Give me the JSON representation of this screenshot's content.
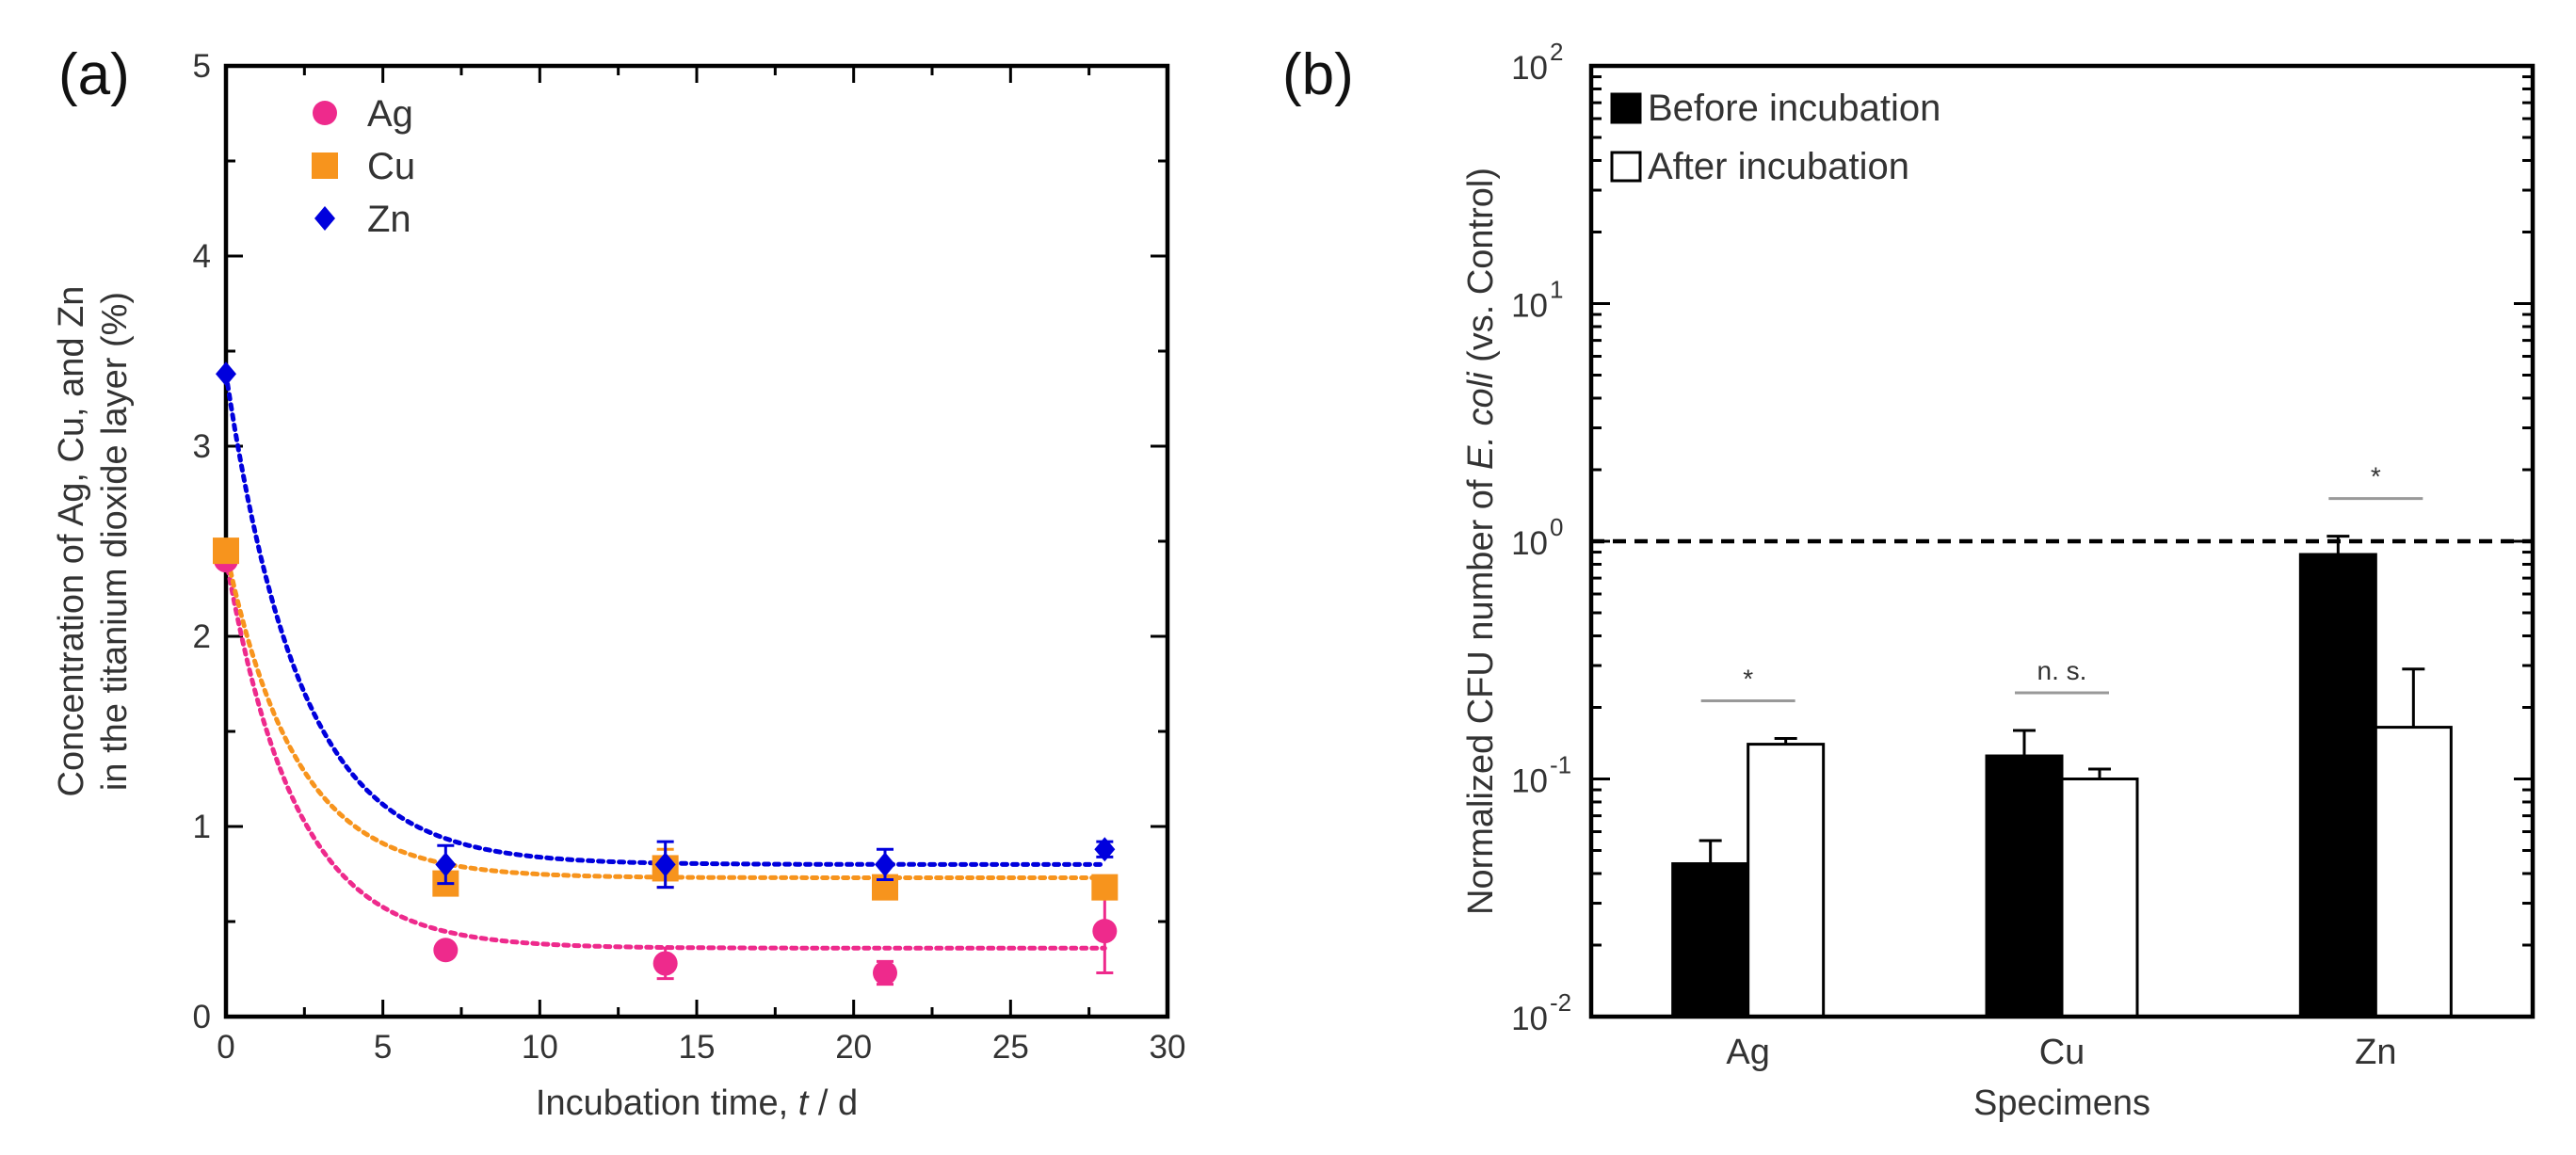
{
  "chart_data": [
    {
      "panel_label": "(a)",
      "type": "scatter",
      "xlabel": {
        "prefix": "Incubation time, ",
        "italic": "t",
        "suffix": " / d"
      },
      "ylabel_lines": [
        "Concentration of Ag, Cu, and Zn",
        "in the titanium dioxide layer (%)"
      ],
      "xlim": [
        0,
        30
      ],
      "ylim": [
        0,
        5
      ],
      "xticks": [
        0,
        5,
        10,
        15,
        20,
        25,
        30
      ],
      "yticks": [
        0,
        1,
        2,
        3,
        4,
        5
      ],
      "legend_position": "top-left",
      "series": [
        {
          "name": "Ag",
          "color": "#ee2a8c",
          "marker": "circle",
          "x": [
            0,
            7,
            14,
            21,
            28
          ],
          "y": [
            2.4,
            0.35,
            0.28,
            0.23,
            0.45
          ],
          "err": [
            0,
            0,
            0.08,
            0.06,
            0.22
          ],
          "fit": {
            "a": 2.05,
            "k": 0.45,
            "c": 0.36
          }
        },
        {
          "name": "Cu",
          "color": "#f7941d",
          "marker": "square",
          "x": [
            0,
            7,
            14,
            21,
            28
          ],
          "y": [
            2.45,
            0.7,
            0.78,
            0.68,
            0.68
          ],
          "err": [
            0,
            0.05,
            0.1,
            0.05,
            0.04
          ],
          "fit": {
            "a": 1.72,
            "k": 0.45,
            "c": 0.73
          }
        },
        {
          "name": "Zn",
          "color": "#0000dd",
          "marker": "diamond",
          "x": [
            0,
            7,
            14,
            21,
            28
          ],
          "y": [
            3.38,
            0.8,
            0.8,
            0.8,
            0.88
          ],
          "err": [
            0,
            0.1,
            0.12,
            0.08,
            0.04
          ],
          "fit": {
            "a": 2.58,
            "k": 0.42,
            "c": 0.8
          }
        }
      ]
    },
    {
      "panel_label": "(b)",
      "type": "bar",
      "y_scale": "log",
      "xlabel": "Specimens",
      "ylabel": {
        "prefix": "Normalized CFU number of ",
        "italic": "E. coli",
        "suffix": " (vs. Control)"
      },
      "ylim": [
        0.01,
        100
      ],
      "ytick_values": [
        0.01,
        0.1,
        1,
        10,
        100
      ],
      "ytick_labels": [
        {
          "base": "10",
          "exp": "-2"
        },
        {
          "base": "10",
          "exp": "-1"
        },
        {
          "base": "10",
          "exp": "0"
        },
        {
          "base": "10",
          "exp": "1"
        },
        {
          "base": "10",
          "exp": "2"
        }
      ],
      "categories": [
        "Ag",
        "Cu",
        "Zn"
      ],
      "legend_position": "top-left",
      "reference_line": 1,
      "series": [
        {
          "name": "Before incubation",
          "fill": "#000000",
          "values": [
            0.044,
            0.125,
            0.88
          ],
          "err_upper": [
            0.055,
            0.16,
            1.05
          ]
        },
        {
          "name": "After incubation",
          "fill": "#ffffff",
          "values": [
            0.14,
            0.1,
            0.165
          ],
          "err_upper": [
            0.148,
            0.11,
            0.29
          ]
        }
      ],
      "significance": [
        "*",
        "n. s.",
        "*"
      ]
    }
  ]
}
